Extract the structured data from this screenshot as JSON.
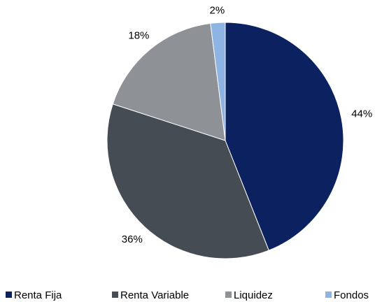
{
  "chart_data": {
    "type": "pie",
    "categories": [
      "Renta Fija",
      "Renta Variable",
      "Liquidez",
      "Fondos"
    ],
    "values": [
      44,
      36,
      18,
      2
    ],
    "value_labels": [
      "44%",
      "36%",
      "18%",
      "2%"
    ],
    "colors": [
      "#0b2160",
      "#464c53",
      "#8e9196",
      "#8db4e2"
    ],
    "legend": "bottom"
  }
}
